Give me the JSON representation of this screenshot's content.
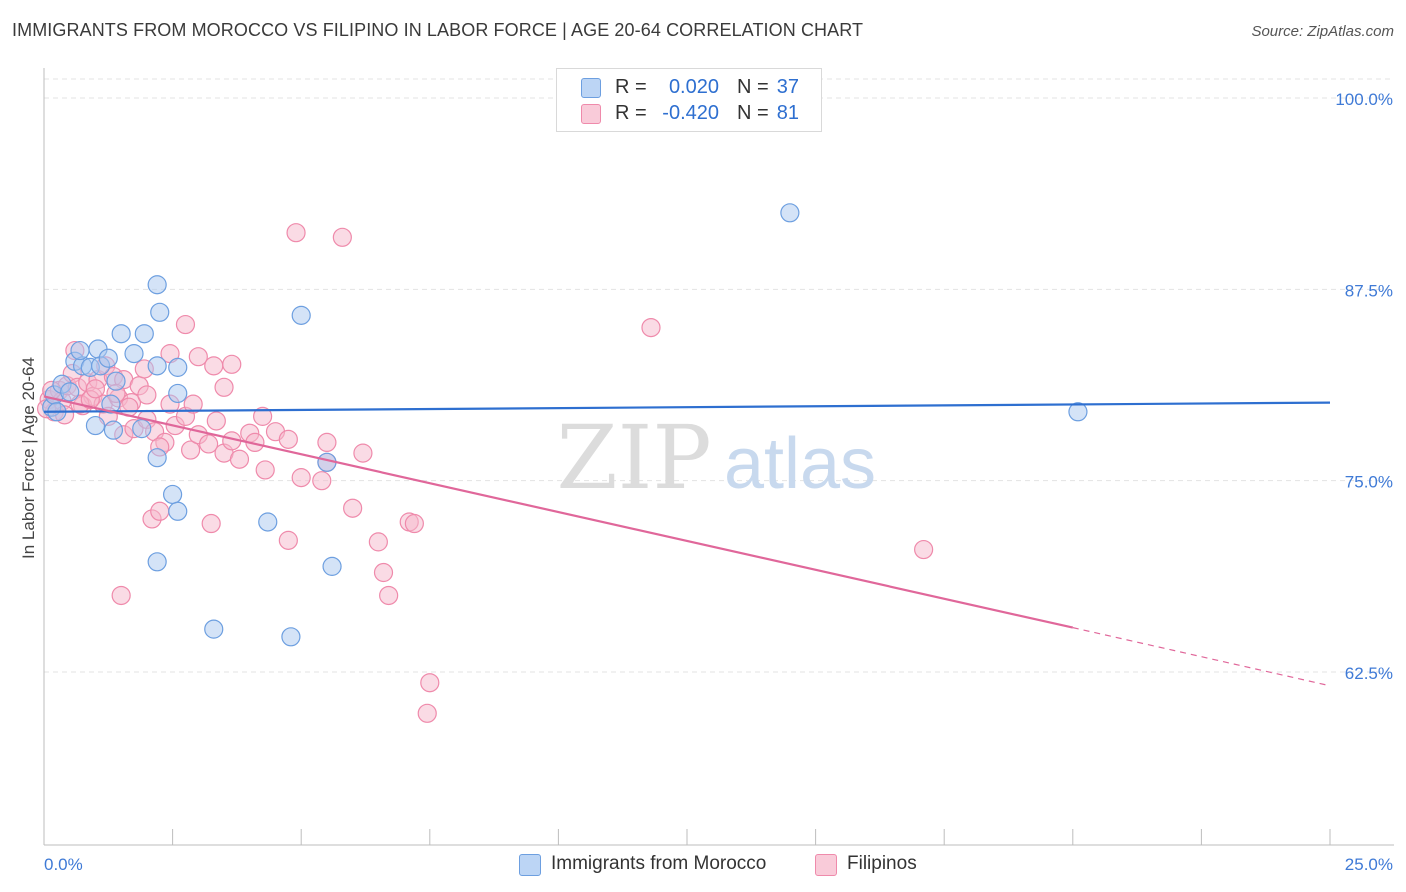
{
  "title": "IMMIGRANTS FROM MOROCCO VS FILIPINO IN LABOR FORCE | AGE 20-64 CORRELATION CHART",
  "source": "Source: ZipAtlas.com",
  "watermark": {
    "zip": "ZIP",
    "atlas": "atlas"
  },
  "legend": {
    "rows": [
      {
        "r_label": "R =",
        "r_value": "0.020",
        "n_label": "N =",
        "n_value": "37"
      },
      {
        "r_label": "R =",
        "r_value": "-0.420",
        "n_label": "N =",
        "n_value": "81"
      }
    ]
  },
  "colors": {
    "morocco_fill": "#a9c8f0",
    "morocco_stroke": "#6d9fe0",
    "morocco_line": "#2e6fd0",
    "filipino_fill": "#f6b8cc",
    "filipino_stroke": "#ef8aab",
    "filipino_line": "#e0679a",
    "tick_text": "#3f7ad6",
    "grid": "#e3e3e3"
  },
  "chart_data": {
    "type": "scatter",
    "title": "IMMIGRANTS FROM MOROCCO VS FILIPINO IN LABOR FORCE | AGE 20-64 CORRELATION CHART",
    "xlabel": "",
    "ylabel": "In Labor Force | Age 20-64",
    "xlim": [
      0,
      25
    ],
    "ylim": [
      52.5,
      101.5
    ],
    "x_tick_labels": [
      "0.0%",
      "25.0%"
    ],
    "y_ticks": [
      62.5,
      75.0,
      87.5,
      100.0
    ],
    "y_tick_labels": [
      "62.5%",
      "75.0%",
      "87.5%",
      "100.0%"
    ],
    "grid": true,
    "legend_position": "bottom",
    "series": [
      {
        "name": "Immigrants from Morocco",
        "r": 0.02,
        "n": 37,
        "trend": {
          "x": [
            0,
            25
          ],
          "y": [
            79.5,
            80.1
          ]
        },
        "points": [
          {
            "x": 0.15,
            "y": 79.8
          },
          {
            "x": 0.2,
            "y": 80.6
          },
          {
            "x": 0.35,
            "y": 81.3
          },
          {
            "x": 0.5,
            "y": 80.8
          },
          {
            "x": 0.6,
            "y": 82.8
          },
          {
            "x": 0.75,
            "y": 82.5
          },
          {
            "x": 0.9,
            "y": 82.4
          },
          {
            "x": 0.7,
            "y": 83.5
          },
          {
            "x": 1.05,
            "y": 83.6
          },
          {
            "x": 1.1,
            "y": 82.5
          },
          {
            "x": 1.25,
            "y": 83.0
          },
          {
            "x": 1.4,
            "y": 81.5
          },
          {
            "x": 1.5,
            "y": 84.6
          },
          {
            "x": 1.3,
            "y": 80.0
          },
          {
            "x": 1.75,
            "y": 83.3
          },
          {
            "x": 1.95,
            "y": 84.6
          },
          {
            "x": 2.2,
            "y": 82.5
          },
          {
            "x": 2.25,
            "y": 86.0
          },
          {
            "x": 2.2,
            "y": 87.8
          },
          {
            "x": 2.6,
            "y": 82.4
          },
          {
            "x": 2.6,
            "y": 80.7
          },
          {
            "x": 1.0,
            "y": 78.6
          },
          {
            "x": 1.35,
            "y": 78.3
          },
          {
            "x": 1.9,
            "y": 78.4
          },
          {
            "x": 2.2,
            "y": 76.5
          },
          {
            "x": 2.5,
            "y": 74.1
          },
          {
            "x": 2.6,
            "y": 73.0
          },
          {
            "x": 2.2,
            "y": 69.7
          },
          {
            "x": 4.35,
            "y": 72.3
          },
          {
            "x": 5.0,
            "y": 85.8
          },
          {
            "x": 5.5,
            "y": 76.2
          },
          {
            "x": 5.6,
            "y": 69.4
          },
          {
            "x": 4.8,
            "y": 64.8
          },
          {
            "x": 3.3,
            "y": 65.3
          },
          {
            "x": 14.5,
            "y": 92.5
          },
          {
            "x": 20.1,
            "y": 79.5
          },
          {
            "x": 0.25,
            "y": 79.5
          }
        ]
      },
      {
        "name": "Filipinos",
        "r": -0.42,
        "n": 81,
        "trend": {
          "x": [
            0,
            20
          ],
          "y": [
            80.5,
            65.4
          ]
        },
        "trend_dashed": {
          "x": [
            20,
            25
          ],
          "y": [
            65.4,
            61.6
          ]
        },
        "points": [
          {
            "x": 0.1,
            "y": 80.3
          },
          {
            "x": 0.2,
            "y": 79.5
          },
          {
            "x": 0.3,
            "y": 80.9
          },
          {
            "x": 0.35,
            "y": 80.2
          },
          {
            "x": 0.45,
            "y": 81.2
          },
          {
            "x": 0.55,
            "y": 82.0
          },
          {
            "x": 0.65,
            "y": 81.1
          },
          {
            "x": 0.75,
            "y": 79.9
          },
          {
            "x": 0.85,
            "y": 81.4
          },
          {
            "x": 0.95,
            "y": 80.5
          },
          {
            "x": 1.05,
            "y": 81.6
          },
          {
            "x": 1.15,
            "y": 80.0
          },
          {
            "x": 1.2,
            "y": 82.5
          },
          {
            "x": 1.35,
            "y": 81.8
          },
          {
            "x": 1.45,
            "y": 80.4
          },
          {
            "x": 1.55,
            "y": 81.6
          },
          {
            "x": 1.7,
            "y": 80.1
          },
          {
            "x": 1.85,
            "y": 81.2
          },
          {
            "x": 1.95,
            "y": 82.3
          },
          {
            "x": 0.6,
            "y": 83.5
          },
          {
            "x": 1.25,
            "y": 79.2
          },
          {
            "x": 1.55,
            "y": 78.0
          },
          {
            "x": 1.75,
            "y": 78.4
          },
          {
            "x": 2.0,
            "y": 79.0
          },
          {
            "x": 2.15,
            "y": 78.2
          },
          {
            "x": 2.35,
            "y": 77.5
          },
          {
            "x": 2.55,
            "y": 78.6
          },
          {
            "x": 2.75,
            "y": 79.2
          },
          {
            "x": 2.85,
            "y": 77.0
          },
          {
            "x": 2.25,
            "y": 77.2
          },
          {
            "x": 3.0,
            "y": 78.0
          },
          {
            "x": 3.2,
            "y": 77.4
          },
          {
            "x": 3.35,
            "y": 78.9
          },
          {
            "x": 3.5,
            "y": 76.8
          },
          {
            "x": 3.65,
            "y": 77.6
          },
          {
            "x": 3.8,
            "y": 76.4
          },
          {
            "x": 4.0,
            "y": 78.1
          },
          {
            "x": 4.1,
            "y": 77.5
          },
          {
            "x": 4.3,
            "y": 75.7
          },
          {
            "x": 4.5,
            "y": 78.2
          },
          {
            "x": 2.45,
            "y": 83.3
          },
          {
            "x": 2.75,
            "y": 85.2
          },
          {
            "x": 3.0,
            "y": 83.1
          },
          {
            "x": 3.3,
            "y": 82.5
          },
          {
            "x": 3.65,
            "y": 82.6
          },
          {
            "x": 2.45,
            "y": 80.0
          },
          {
            "x": 2.0,
            "y": 80.6
          },
          {
            "x": 2.9,
            "y": 80.0
          },
          {
            "x": 3.5,
            "y": 81.1
          },
          {
            "x": 0.7,
            "y": 80.0
          },
          {
            "x": 0.05,
            "y": 79.7
          },
          {
            "x": 0.9,
            "y": 80.3
          },
          {
            "x": 1.4,
            "y": 80.7
          },
          {
            "x": 1.65,
            "y": 79.8
          },
          {
            "x": 4.25,
            "y": 79.2
          },
          {
            "x": 4.75,
            "y": 77.7
          },
          {
            "x": 5.0,
            "y": 75.2
          },
          {
            "x": 5.4,
            "y": 75.0
          },
          {
            "x": 5.5,
            "y": 76.2
          },
          {
            "x": 5.5,
            "y": 77.5
          },
          {
            "x": 6.0,
            "y": 73.2
          },
          {
            "x": 6.2,
            "y": 76.8
          },
          {
            "x": 4.75,
            "y": 71.1
          },
          {
            "x": 3.25,
            "y": 72.2
          },
          {
            "x": 2.1,
            "y": 72.5
          },
          {
            "x": 2.25,
            "y": 73.0
          },
          {
            "x": 1.5,
            "y": 67.5
          },
          {
            "x": 6.5,
            "y": 71.0
          },
          {
            "x": 6.6,
            "y": 69.0
          },
          {
            "x": 6.7,
            "y": 67.5
          },
          {
            "x": 7.1,
            "y": 72.3
          },
          {
            "x": 7.2,
            "y": 72.2
          },
          {
            "x": 4.9,
            "y": 91.2
          },
          {
            "x": 5.8,
            "y": 90.9
          },
          {
            "x": 11.8,
            "y": 85.0
          },
          {
            "x": 7.5,
            "y": 61.8
          },
          {
            "x": 7.45,
            "y": 59.8
          },
          {
            "x": 17.1,
            "y": 70.5
          },
          {
            "x": 0.15,
            "y": 80.9
          },
          {
            "x": 0.4,
            "y": 79.3
          },
          {
            "x": 1.0,
            "y": 81.0
          }
        ]
      }
    ]
  }
}
